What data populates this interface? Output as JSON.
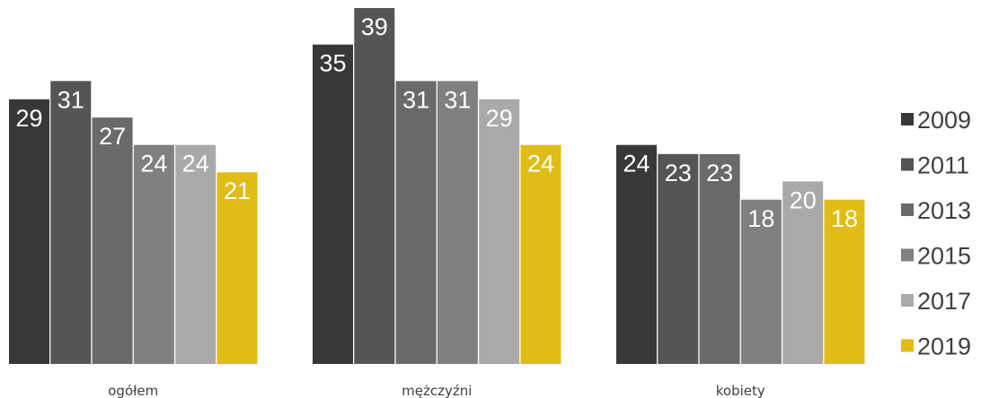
{
  "chart_data": {
    "type": "bar",
    "categories": [
      "ogółem",
      "mężczyźni",
      "kobiety"
    ],
    "series": [
      {
        "name": "2009",
        "color": "#383838",
        "values": [
          29,
          35,
          24
        ]
      },
      {
        "name": "2011",
        "color": "#555555",
        "values": [
          31,
          39,
          23
        ]
      },
      {
        "name": "2013",
        "color": "#6a6a6a",
        "values": [
          27,
          31,
          23
        ]
      },
      {
        "name": "2015",
        "color": "#808080",
        "values": [
          24,
          31,
          18
        ]
      },
      {
        "name": "2017",
        "color": "#a9a9a9",
        "values": [
          24,
          29,
          20
        ]
      },
      {
        "name": "2019",
        "color": "#e1bc16",
        "values": [
          21,
          24,
          18
        ]
      }
    ],
    "ylim": [
      0,
      40
    ],
    "grid": false,
    "legend": "right"
  }
}
